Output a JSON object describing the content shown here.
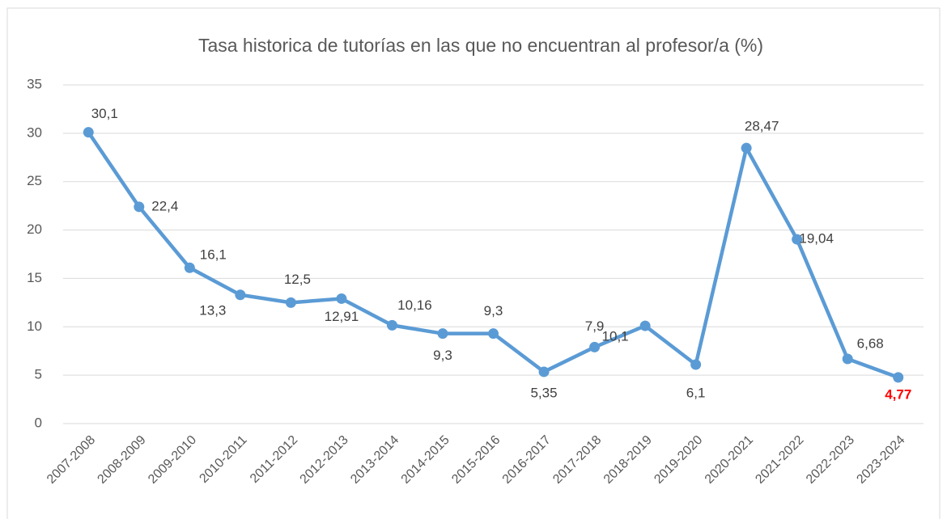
{
  "chart_data": {
    "type": "line",
    "title": "Tasa historica de tutorías en las que no encuentran al profesor/a (%)",
    "categories": [
      "2007-2008",
      "2008-2009",
      "2009-2010",
      "2010-2011",
      "2011-2012",
      "2012-2013",
      "2013-2014",
      "2014-2015",
      "2015-2016",
      "2016-2017",
      "2017-2018",
      "2018-2019",
      "2019-2020",
      "2020-2021",
      "2021-2022",
      "2022-2023",
      "2023-2024"
    ],
    "series": [
      {
        "name": "Tasa",
        "color": "#5b9bd5",
        "values": [
          30.1,
          22.4,
          16.1,
          13.3,
          12.5,
          12.91,
          10.16,
          9.3,
          9.3,
          5.35,
          7.9,
          10.1,
          6.1,
          28.47,
          19.04,
          6.68,
          4.77
        ],
        "value_labels": [
          "30,1",
          "22,4",
          "16,1",
          "13,3",
          "12,5",
          "12,91",
          "10,16",
          "9,3",
          "9,3",
          "5,35",
          "7,9",
          "10,1",
          "6,1",
          "28,47",
          "19,04",
          "6,68",
          "4,77"
        ],
        "value_label_colors": [
          "#404040",
          "#404040",
          "#404040",
          "#404040",
          "#404040",
          "#404040",
          "#404040",
          "#404040",
          "#404040",
          "#404040",
          "#404040",
          "#404040",
          "#404040",
          "#404040",
          "#404040",
          "#404040",
          "#ff0000"
        ]
      }
    ],
    "ylim": [
      0,
      35
    ],
    "yticks": [
      0,
      5,
      10,
      15,
      20,
      25,
      30,
      35
    ],
    "grid": true
  }
}
